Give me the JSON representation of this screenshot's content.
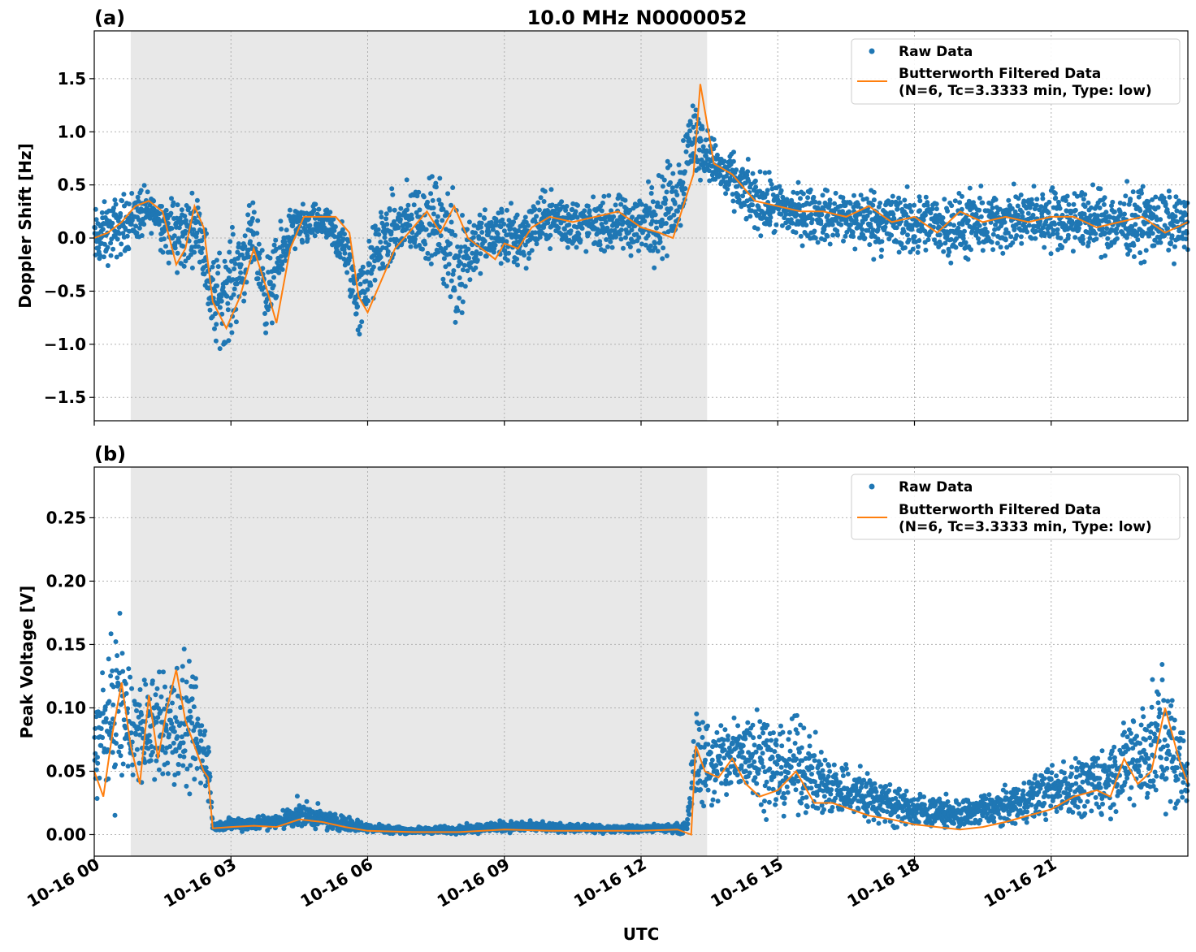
{
  "figure": {
    "title": "10.0 MHz N0000052",
    "xlabel": "UTC",
    "x_tick_labels": [
      "10-16 00",
      "10-16 03",
      "10-16 06",
      "10-16 09",
      "10-16 12",
      "10-16 15",
      "10-16 18",
      "10-16 21"
    ],
    "colors": {
      "raw": "#1f77b4",
      "filtered": "#ff7f0e",
      "night_shade": "#e8e8e8"
    }
  },
  "chart_data": [
    {
      "panel_label": "(a)",
      "type": "scatter",
      "ylabel": "Doppler Shift [Hz]",
      "xlim_hours": [
        0,
        24
      ],
      "ylim": [
        -1.72,
        1.95
      ],
      "y_ticks": [
        -1.5,
        -1.0,
        -0.5,
        0.0,
        0.5,
        1.0,
        1.5
      ],
      "y_tick_labels": [
        "−1.5",
        "−1.0",
        "−0.5",
        "0.0",
        "0.5",
        "1.0",
        "1.5"
      ],
      "shaded_span_hours": [
        0.8,
        13.45
      ],
      "grid": true,
      "legend": {
        "placement": "upper right",
        "entries": [
          "Raw Data",
          "Butterworth Filtered Data",
          "(N=6, Tc=3.3333 min, Type: low)"
        ]
      },
      "series": [
        {
          "name": "Raw Data",
          "kind": "scatter-band",
          "x_hours": [
            0,
            0.5,
            1.0,
            1.3,
            1.8,
            2.3,
            2.6,
            3.0,
            3.5,
            3.8,
            4.3,
            5.0,
            5.5,
            5.8,
            6.3,
            7.0,
            7.5,
            8.0,
            8.3,
            8.8,
            9.3,
            10.0,
            10.5,
            11.0,
            11.5,
            12.0,
            12.5,
            12.8,
            13.1,
            13.4,
            13.8,
            14.5,
            15.0,
            15.5,
            16.0,
            17.0,
            18.0,
            18.5,
            19.0,
            20.0,
            21.0,
            22.0,
            23.0,
            24.0
          ],
          "y_low": [
            -0.4,
            -0.25,
            -0.1,
            0.05,
            -0.5,
            -0.2,
            -1.15,
            -1.05,
            -0.4,
            -1.05,
            -0.2,
            -0.05,
            -0.4,
            -1.05,
            -0.45,
            -0.25,
            -0.35,
            -1.15,
            -0.45,
            -0.3,
            -0.4,
            -0.1,
            -0.2,
            -0.15,
            -0.2,
            -0.25,
            -0.3,
            -0.1,
            0.4,
            0.55,
            0.3,
            0.0,
            -0.05,
            -0.1,
            -0.1,
            -0.2,
            -0.25,
            -0.2,
            -0.3,
            -0.2,
            -0.15,
            -0.2,
            -0.25,
            -0.2
          ],
          "y_high": [
            0.35,
            0.45,
            0.55,
            0.45,
            0.5,
            0.45,
            -0.1,
            0.15,
            0.4,
            -0.1,
            0.35,
            0.35,
            0.2,
            -0.2,
            0.4,
            0.6,
            0.65,
            0.75,
            0.3,
            0.35,
            0.4,
            0.5,
            0.45,
            0.4,
            0.45,
            0.5,
            0.8,
            0.85,
            1.55,
            1.1,
            0.9,
            0.7,
            0.6,
            0.55,
            0.5,
            0.55,
            0.5,
            0.45,
            0.5,
            0.5,
            0.55,
            0.5,
            0.55,
            0.45
          ]
        },
        {
          "name": "Butterworth Filtered Data",
          "kind": "line",
          "x_hours": [
            0,
            0.3,
            0.6,
            0.9,
            1.2,
            1.5,
            1.8,
            2.0,
            2.2,
            2.4,
            2.6,
            2.9,
            3.2,
            3.5,
            3.8,
            4.0,
            4.3,
            4.6,
            5.0,
            5.3,
            5.6,
            5.8,
            6.0,
            6.3,
            6.6,
            7.0,
            7.3,
            7.6,
            7.9,
            8.2,
            8.5,
            8.8,
            9.0,
            9.3,
            9.6,
            10.0,
            10.5,
            11.0,
            11.5,
            12.0,
            12.4,
            12.7,
            13.0,
            13.15,
            13.3,
            13.6,
            14.0,
            14.5,
            15.0,
            15.5,
            16.0,
            16.5,
            17.0,
            17.5,
            18.0,
            18.5,
            19.0,
            19.5,
            20.0,
            20.5,
            21.0,
            21.5,
            22.0,
            22.5,
            23.0,
            23.5,
            24.0
          ],
          "y": [
            0.0,
            0.05,
            0.15,
            0.3,
            0.35,
            0.25,
            -0.25,
            -0.1,
            0.3,
            0.1,
            -0.6,
            -0.85,
            -0.55,
            -0.1,
            -0.5,
            -0.8,
            -0.1,
            0.2,
            0.2,
            0.2,
            0.05,
            -0.55,
            -0.7,
            -0.4,
            -0.1,
            0.1,
            0.25,
            0.05,
            0.3,
            0.0,
            -0.1,
            -0.2,
            -0.05,
            -0.1,
            0.1,
            0.2,
            0.15,
            0.2,
            0.25,
            0.1,
            0.05,
            0.0,
            0.4,
            0.6,
            1.45,
            0.7,
            0.6,
            0.35,
            0.3,
            0.25,
            0.25,
            0.2,
            0.3,
            0.15,
            0.2,
            0.05,
            0.25,
            0.15,
            0.2,
            0.15,
            0.2,
            0.2,
            0.1,
            0.15,
            0.2,
            0.05,
            0.15
          ]
        }
      ]
    },
    {
      "panel_label": "(b)",
      "type": "scatter",
      "ylabel": "Peak Voltage [V]",
      "xlim_hours": [
        0,
        24
      ],
      "ylim": [
        -0.017,
        0.29
      ],
      "y_ticks": [
        0.0,
        0.05,
        0.1,
        0.15,
        0.2,
        0.25
      ],
      "y_tick_labels": [
        "0.00",
        "0.05",
        "0.10",
        "0.15",
        "0.20",
        "0.25"
      ],
      "shaded_span_hours": [
        0.8,
        13.45
      ],
      "grid": true,
      "legend": {
        "placement": "upper right",
        "entries": [
          "Raw Data",
          "Butterworth Filtered Data",
          "(N=6, Tc=3.3333 min, Type: low)"
        ]
      },
      "series": [
        {
          "name": "Raw Data",
          "kind": "scatter-band",
          "x_hours": [
            0,
            0.5,
            1.0,
            1.5,
            2.0,
            2.5,
            2.6,
            3.0,
            4.0,
            4.5,
            5.0,
            6.0,
            7.0,
            8.0,
            9.0,
            10.0,
            11.0,
            12.0,
            13.0,
            13.2,
            13.5,
            14.0,
            14.5,
            15.0,
            15.5,
            16.0,
            17.0,
            18.0,
            19.0,
            20.0,
            21.0,
            22.0,
            22.5,
            23.0,
            23.5,
            24.0
          ],
          "y_low": [
            0.02,
            0.02,
            0.03,
            0.03,
            0.02,
            0.02,
            0.002,
            0.002,
            0.002,
            0.003,
            0.002,
            0.001,
            0.0,
            0.0,
            0.001,
            0.001,
            0.001,
            0.001,
            0.0,
            0.02,
            0.01,
            0.02,
            0.02,
            0.01,
            0.01,
            0.01,
            0.005,
            0.003,
            0.002,
            0.005,
            0.01,
            0.01,
            0.01,
            0.01,
            0.01,
            0.01
          ],
          "y_high": [
            0.12,
            0.18,
            0.13,
            0.14,
            0.15,
            0.1,
            0.01,
            0.015,
            0.018,
            0.03,
            0.022,
            0.01,
            0.006,
            0.008,
            0.012,
            0.01,
            0.008,
            0.008,
            0.01,
            0.11,
            0.1,
            0.1,
            0.12,
            0.09,
            0.1,
            0.07,
            0.055,
            0.035,
            0.03,
            0.04,
            0.06,
            0.07,
            0.09,
            0.12,
            0.14,
            0.08
          ]
        },
        {
          "name": "Butterworth Filtered Data",
          "kind": "line",
          "x_hours": [
            0,
            0.2,
            0.4,
            0.6,
            0.8,
            1.0,
            1.2,
            1.4,
            1.6,
            1.8,
            2.0,
            2.2,
            2.4,
            2.5,
            2.6,
            3.0,
            3.5,
            4.0,
            4.5,
            5.0,
            5.5,
            6.0,
            7.0,
            8.0,
            9.0,
            10.0,
            11.0,
            12.0,
            12.8,
            13.1,
            13.2,
            13.4,
            13.7,
            14.0,
            14.3,
            14.6,
            15.0,
            15.4,
            15.8,
            16.2,
            16.6,
            17.0,
            17.5,
            18.0,
            18.5,
            19.0,
            19.5,
            20.0,
            20.5,
            21.0,
            21.5,
            22.0,
            22.3,
            22.6,
            22.9,
            23.2,
            23.5,
            23.8,
            24.0
          ],
          "y": [
            0.05,
            0.03,
            0.08,
            0.12,
            0.07,
            0.04,
            0.11,
            0.06,
            0.1,
            0.13,
            0.09,
            0.07,
            0.05,
            0.045,
            0.005,
            0.006,
            0.007,
            0.006,
            0.012,
            0.01,
            0.006,
            0.003,
            0.002,
            0.002,
            0.004,
            0.003,
            0.003,
            0.003,
            0.004,
            0.0,
            0.07,
            0.05,
            0.045,
            0.06,
            0.04,
            0.03,
            0.035,
            0.05,
            0.025,
            0.025,
            0.02,
            0.015,
            0.012,
            0.008,
            0.006,
            0.004,
            0.006,
            0.01,
            0.015,
            0.02,
            0.03,
            0.035,
            0.03,
            0.06,
            0.04,
            0.05,
            0.1,
            0.06,
            0.04
          ]
        }
      ]
    }
  ]
}
